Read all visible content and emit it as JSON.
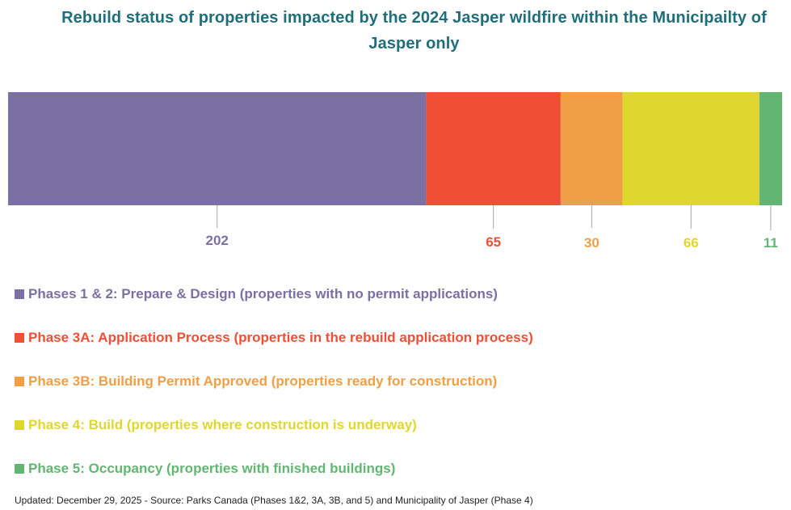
{
  "chart_data": {
    "type": "bar",
    "orientation": "horizontal-stacked",
    "title": "Rebuild status of properties impacted by the 2024 Jasper wildfire within the Municipailty of Jasper only",
    "series": [
      {
        "name": "Phases 1 & 2: Prepare & Design (properties with no permit applications)",
        "value": 202,
        "label": "202",
        "color": "#7b70a3"
      },
      {
        "name": "Phase 3A: Application Process (properties in the rebuild application process)",
        "value": 65,
        "label": "65",
        "color": "#f04f36"
      },
      {
        "name": "Phase 3B: Building Permit Approved (properties ready for construction)",
        "value": 30,
        "label": "30",
        "color": "#f09f46"
      },
      {
        "name": "Phase 4: Build (properties where construction is underway)",
        "value": 66,
        "label": "66",
        "color": "#e0d72e"
      },
      {
        "name": "Phase 5: Occupancy (properties with finished buildings)",
        "value": 11,
        "label": "11",
        "color": "#63b672"
      }
    ],
    "legend_position": "bottom",
    "grid": false,
    "footnote": "Updated: December 29, 2025  -  Source: Parks Canada (Phases 1&2, 3A, 3B, and 5) and Municipality of Jasper (Phase 4)"
  }
}
